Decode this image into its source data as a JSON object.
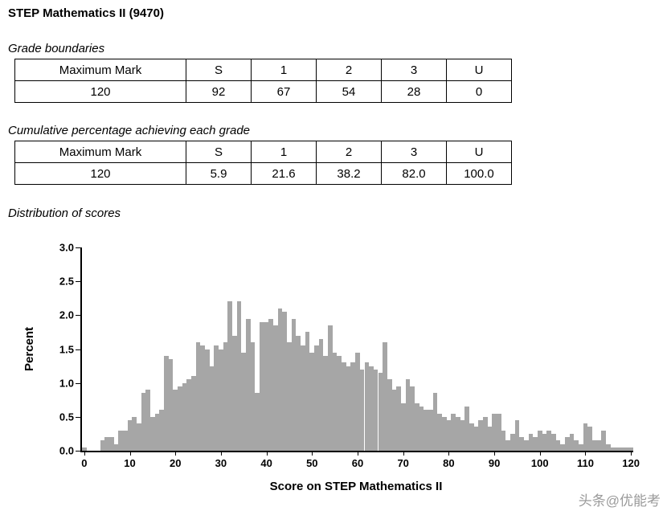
{
  "page": {
    "title": "STEP Mathematics II (9470)"
  },
  "grade_boundaries": {
    "heading": "Grade boundaries",
    "headers": [
      "Maximum Mark",
      "S",
      "1",
      "2",
      "3",
      "U"
    ],
    "row": [
      "120",
      "92",
      "67",
      "54",
      "28",
      "0"
    ]
  },
  "cumulative_percentage": {
    "heading": "Cumulative percentage achieving each grade",
    "headers": [
      "Maximum Mark",
      "S",
      "1",
      "2",
      "3",
      "U"
    ],
    "row": [
      "120",
      "5.9",
      "21.6",
      "38.2",
      "82.0",
      "100.0"
    ]
  },
  "distribution": {
    "heading": "Distribution of scores"
  },
  "chart_data": {
    "type": "bar",
    "title": "",
    "xlabel": "Score on STEP Mathematics II",
    "ylabel": "Percent",
    "xlim": [
      0,
      120
    ],
    "ylim": [
      0.0,
      3.0
    ],
    "grid": false,
    "legend": "none",
    "bar_color": "#a6a6a6",
    "x_tick_labels": [
      "0",
      "10",
      "20",
      "30",
      "40",
      "50",
      "60",
      "70",
      "80",
      "90",
      "100",
      "110",
      "120"
    ],
    "y_tick_labels": [
      "0.0",
      "0.5",
      "1.0",
      "1.5",
      "2.0",
      "2.5",
      "3.0"
    ],
    "x_start": 0,
    "values": [
      0.05,
      0,
      0,
      0,
      0.15,
      0.2,
      0.2,
      0.1,
      0.3,
      0.3,
      0.45,
      0.5,
      0.4,
      0.85,
      0.9,
      0.5,
      0.55,
      0.6,
      1.4,
      1.35,
      0.9,
      0.95,
      1.0,
      1.05,
      1.1,
      1.6,
      1.55,
      1.5,
      1.25,
      1.55,
      1.5,
      1.6,
      2.2,
      1.7,
      2.2,
      1.45,
      1.95,
      1.6,
      0.85,
      1.9,
      1.9,
      1.95,
      1.85,
      2.1,
      2.05,
      1.6,
      1.95,
      1.7,
      1.55,
      1.75,
      1.45,
      1.55,
      1.65,
      1.4,
      1.85,
      1.45,
      1.4,
      1.3,
      1.25,
      1.3,
      1.45,
      1.2,
      1.3,
      1.25,
      1.2,
      1.15,
      1.6,
      1.05,
      0.9,
      0.95,
      0.7,
      1.05,
      0.95,
      0.7,
      0.65,
      0.6,
      0.6,
      0.85,
      0.55,
      0.5,
      0.45,
      0.55,
      0.5,
      0.45,
      0.65,
      0.4,
      0.35,
      0.45,
      0.5,
      0.35,
      0.55,
      0.55,
      0.3,
      0.15,
      0.25,
      0.45,
      0.2,
      0.15,
      0.25,
      0.2,
      0.3,
      0.25,
      0.3,
      0.25,
      0.15,
      0.1,
      0.2,
      0.25,
      0.15,
      0.1,
      0.4,
      0.35,
      0.15,
      0.15,
      0.3,
      0.1,
      0.05,
      0.05,
      0.05,
      0.05,
      0.05
    ]
  },
  "watermark": {
    "text": "头条@优能考"
  }
}
